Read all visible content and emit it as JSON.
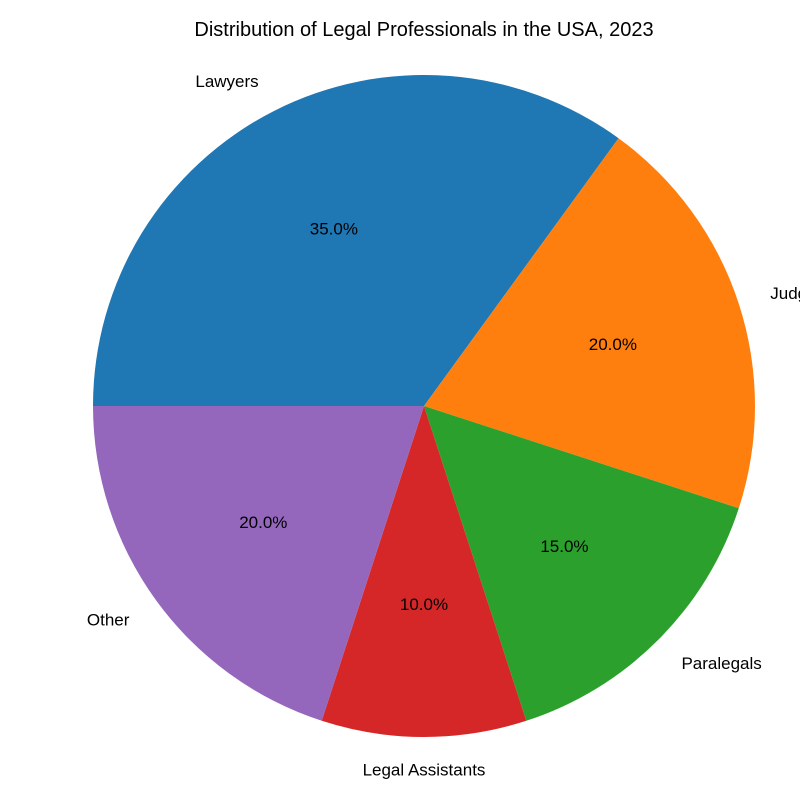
{
  "chart_data": {
    "type": "pie",
    "title": "Distribution of Legal Professionals in the USA, 2023",
    "categories": [
      "Lawyers",
      "Judges",
      "Paralegals",
      "Legal Assistants",
      "Other"
    ],
    "values": [
      35,
      20,
      15,
      10,
      20
    ],
    "percent_labels": [
      "35.0%",
      "20.0%",
      "15.0%",
      "10.0%",
      "20.0%"
    ],
    "colors": [
      "#1f77b4",
      "#ff7f0e",
      "#2ca02c",
      "#d62728",
      "#9467bd"
    ],
    "start_angle_deg": 180,
    "direction": "clockwise",
    "legend": "none"
  }
}
